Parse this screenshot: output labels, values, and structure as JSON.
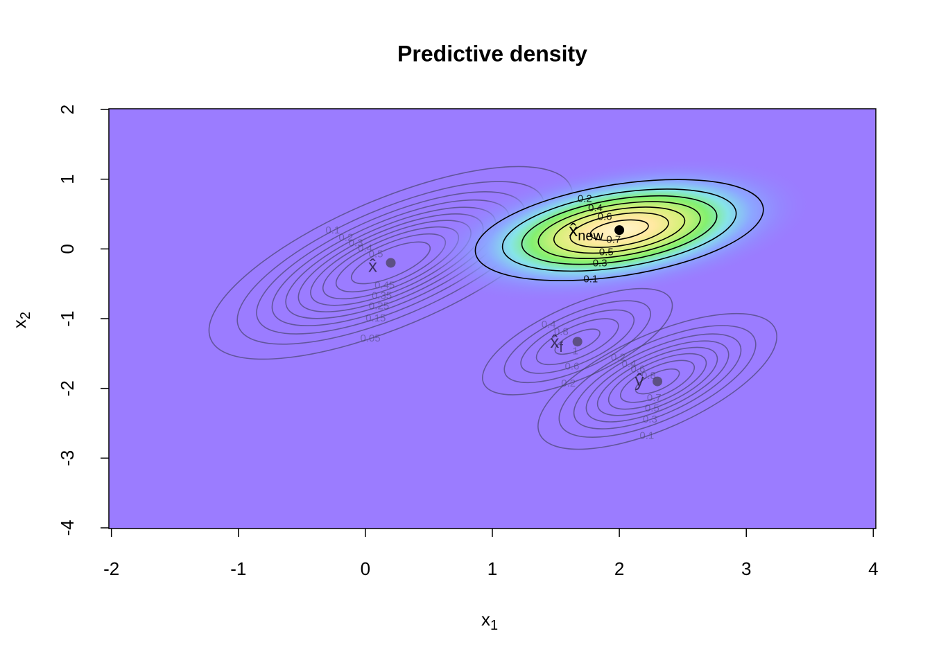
{
  "chart_data": {
    "type": "contour",
    "title": "Predictive density",
    "x_label": {
      "text": "x",
      "sub": "1"
    },
    "y_label": {
      "text": "x",
      "sub": "2"
    },
    "xlim": [
      -2.02,
      4.02
    ],
    "xticks": [
      -2,
      -1,
      0,
      1,
      2,
      3,
      4
    ],
    "ylim": [
      -4.01,
      2.01
    ],
    "yticks": [
      -4,
      -3,
      -2,
      -1,
      0,
      1,
      2
    ],
    "background": "#9b7cff",
    "groups": [
      {
        "label": "x̂",
        "sub": "",
        "x": 0.2,
        "y": -0.2,
        "color": "#3c3c5a",
        "heatmap": false,
        "levels": [
          0.05,
          0.1,
          0.15,
          0.2,
          0.25,
          0.3,
          0.35,
          0.4,
          0.45,
          0.5
        ]
      },
      {
        "label": "x̂",
        "sub": "new",
        "x": 2.0,
        "y": 0.27,
        "color": "#000000",
        "heatmap": true,
        "levels": [
          0.1,
          0.2,
          0.3,
          0.4,
          0.5,
          0.6,
          0.7
        ]
      },
      {
        "label": "x̂",
        "sub": "f",
        "x": 1.67,
        "y": -1.33,
        "color": "#3c3c5a",
        "heatmap": false,
        "levels": [
          0.2,
          0.4,
          0.6,
          0.8,
          1
        ]
      },
      {
        "label": "ŷ",
        "sub": "",
        "x": 2.3,
        "y": -1.9,
        "color": "#3c3c5a",
        "heatmap": false,
        "levels": [
          0.1,
          0.2,
          0.3,
          0.4,
          0.5,
          0.6,
          0.7,
          0.8
        ]
      }
    ]
  }
}
